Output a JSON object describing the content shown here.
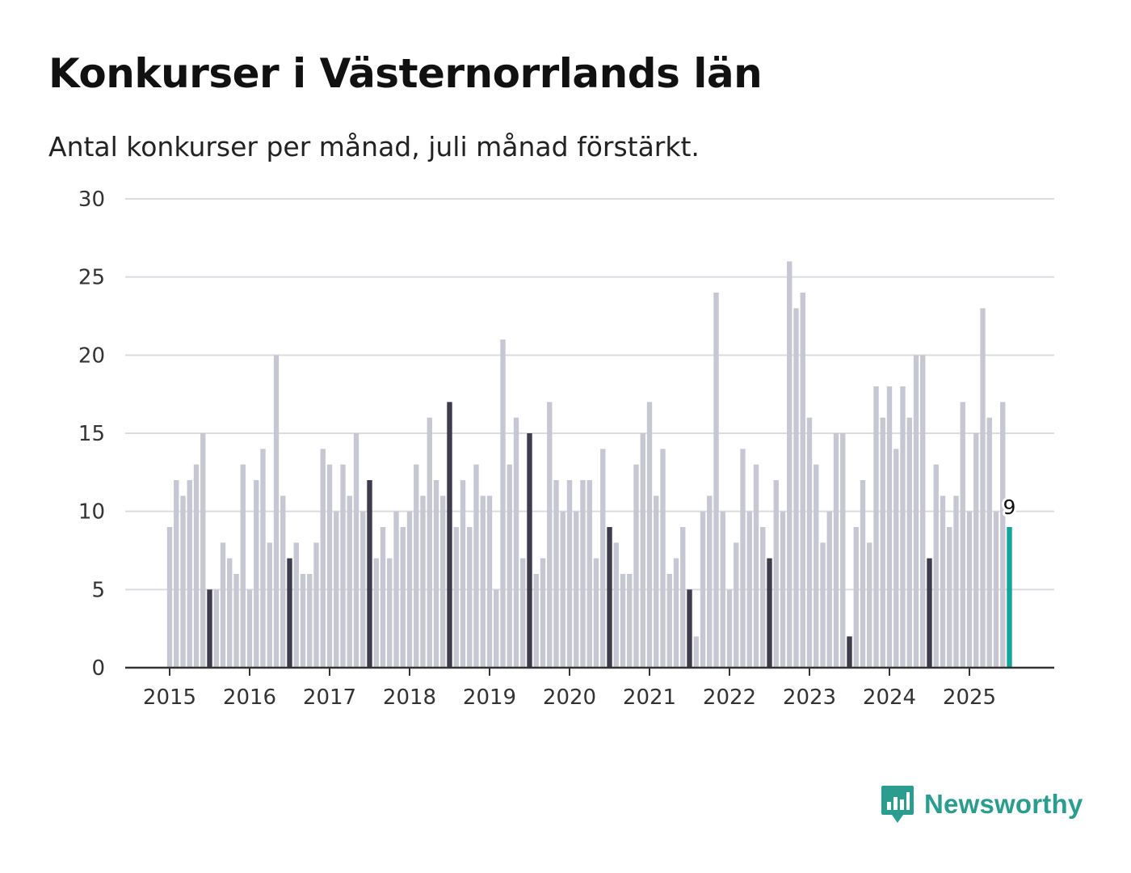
{
  "brand": {
    "name": "Newsworthy",
    "icon": "newsworthy-logo-icon",
    "color": "#2a9d8f"
  },
  "chart_data": {
    "type": "bar",
    "title": "Konkurser i Västernorrlands län",
    "subtitle": "Antal konkurser per månad, juli månad förstärkt.",
    "ylim": [
      0,
      30
    ],
    "y_ticks": [
      0,
      5,
      10,
      15,
      20,
      25,
      30
    ],
    "x_tick_labels": [
      "2015",
      "2016",
      "2017",
      "2018",
      "2019",
      "2020",
      "2021",
      "2022",
      "2023",
      "2024",
      "2025"
    ],
    "grid": true,
    "highlight_month": "July",
    "colors": {
      "default": "#c7c7d3",
      "july": "#3d3b4c",
      "latest": "#11a59b",
      "grid": "#dcdce0",
      "axis": "#333333"
    },
    "latest_label": "9",
    "series": [
      {
        "x": [
          "2015-01",
          "2015-02",
          "2015-03",
          "2015-04",
          "2015-05",
          "2015-06",
          "2015-07",
          "2015-08",
          "2015-09",
          "2015-10",
          "2015-11",
          "2015-12",
          "2016-01",
          "2016-02",
          "2016-03",
          "2016-04",
          "2016-05",
          "2016-06",
          "2016-07",
          "2016-08",
          "2016-09",
          "2016-10",
          "2016-11",
          "2016-12",
          "2017-01",
          "2017-02",
          "2017-03",
          "2017-04",
          "2017-05",
          "2017-06",
          "2017-07",
          "2017-08",
          "2017-09",
          "2017-10",
          "2017-11",
          "2017-12",
          "2018-01",
          "2018-02",
          "2018-03",
          "2018-04",
          "2018-05",
          "2018-06",
          "2018-07",
          "2018-08",
          "2018-09",
          "2018-10",
          "2018-11",
          "2018-12",
          "2019-01",
          "2019-02",
          "2019-03",
          "2019-04",
          "2019-05",
          "2019-06",
          "2019-07",
          "2019-08",
          "2019-09",
          "2019-10",
          "2019-11",
          "2019-12",
          "2020-01",
          "2020-02",
          "2020-03",
          "2020-04",
          "2020-05",
          "2020-06",
          "2020-07",
          "2020-08",
          "2020-09",
          "2020-10",
          "2020-11",
          "2020-12",
          "2021-01",
          "2021-02",
          "2021-03",
          "2021-04",
          "2021-05",
          "2021-06",
          "2021-07",
          "2021-08",
          "2021-09",
          "2021-10",
          "2021-11",
          "2021-12",
          "2022-01",
          "2022-02",
          "2022-03",
          "2022-04",
          "2022-05",
          "2022-06",
          "2022-07",
          "2022-08",
          "2022-09",
          "2022-10",
          "2022-11",
          "2022-12",
          "2023-01",
          "2023-02",
          "2023-03",
          "2023-04",
          "2023-05",
          "2023-06",
          "2023-07",
          "2023-08",
          "2023-09",
          "2023-10",
          "2023-11",
          "2023-12",
          "2024-01",
          "2024-02",
          "2024-03",
          "2024-04",
          "2024-05",
          "2024-06",
          "2024-07",
          "2024-08",
          "2024-09",
          "2024-10",
          "2024-11",
          "2024-12",
          "2025-01",
          "2025-02",
          "2025-03",
          "2025-04",
          "2025-05",
          "2025-06",
          "2025-07"
        ],
        "values": [
          9,
          12,
          11,
          12,
          13,
          15,
          5,
          5,
          8,
          7,
          6,
          13,
          5,
          12,
          14,
          8,
          20,
          11,
          7,
          8,
          6,
          6,
          8,
          14,
          13,
          10,
          13,
          11,
          15,
          10,
          12,
          7,
          9,
          7,
          10,
          9,
          10,
          13,
          11,
          16,
          12,
          11,
          17,
          9,
          12,
          9,
          13,
          11,
          11,
          5,
          21,
          13,
          16,
          7,
          15,
          6,
          7,
          17,
          12,
          10,
          12,
          10,
          12,
          12,
          7,
          14,
          9,
          8,
          6,
          6,
          13,
          15,
          17,
          11,
          14,
          6,
          7,
          9,
          5,
          2,
          10,
          11,
          24,
          10,
          5,
          8,
          14,
          10,
          13,
          9,
          7,
          12,
          10,
          26,
          23,
          24,
          16,
          13,
          8,
          10,
          15,
          15,
          2,
          9,
          12,
          8,
          18,
          16,
          18,
          14,
          18,
          16,
          20,
          20,
          7,
          13,
          11,
          9,
          11,
          17,
          10,
          15,
          23,
          16,
          10,
          17,
          9
        ]
      }
    ]
  }
}
